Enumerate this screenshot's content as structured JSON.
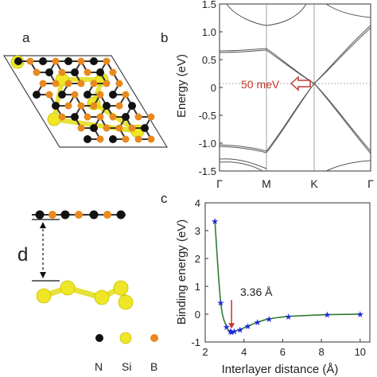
{
  "panels": {
    "a": {
      "label": "a"
    },
    "b": {
      "label": "b"
    },
    "c": {
      "label": "c"
    }
  },
  "side_view": {
    "distance_label": "d"
  },
  "legend": {
    "items": [
      {
        "symbol": "N",
        "color": "#111111"
      },
      {
        "symbol": "Si",
        "color": "#f2ea1a"
      },
      {
        "symbol": "B",
        "color": "#e88a1e"
      }
    ]
  },
  "band_structure": {
    "ylabel": "Energy (eV)",
    "ylim": [
      -1.5,
      1.5
    ],
    "yticks": [
      "1.5",
      "1.0",
      "0.5",
      "0",
      "-0.5",
      "-1.0",
      "-1.5"
    ],
    "ytick_values": [
      1.5,
      1.0,
      0.5,
      0,
      -0.5,
      -1.0,
      -1.5
    ],
    "kpoints": [
      "Γ",
      "M",
      "K",
      "Γ"
    ],
    "annotation": "50 meV",
    "annotation_color": "#c0392b"
  },
  "chart_data": {
    "type": "line",
    "xlabel": "Interlayer distance (Å)",
    "ylabel": "Binding energy (eV)",
    "xlim": [
      2,
      10.5
    ],
    "ylim": [
      -1,
      4
    ],
    "xticks": [
      "2",
      "4",
      "6",
      "8",
      "10"
    ],
    "xtick_values": [
      2,
      4,
      6,
      8,
      10
    ],
    "yticks": [
      "4",
      "3",
      "2",
      "1",
      "0",
      "-1"
    ],
    "ytick_values": [
      4,
      3,
      2,
      1,
      0,
      -1
    ],
    "series": [
      {
        "x": [
          2.5,
          2.8,
          3.1,
          3.3,
          3.36,
          3.5,
          3.8,
          4.2,
          4.7,
          5.3,
          6.3,
          8.3,
          10.0
        ],
        "y": [
          3.35,
          0.42,
          -0.45,
          -0.62,
          -0.64,
          -0.62,
          -0.55,
          -0.43,
          -0.29,
          -0.17,
          -0.08,
          -0.02,
          0.0
        ],
        "marker_color": "#1a2ad8",
        "line_color": "#2e7d32"
      }
    ],
    "annotation": "3.36 Å",
    "annotation_x": 3.36,
    "annotation_color": "#c0392b"
  }
}
